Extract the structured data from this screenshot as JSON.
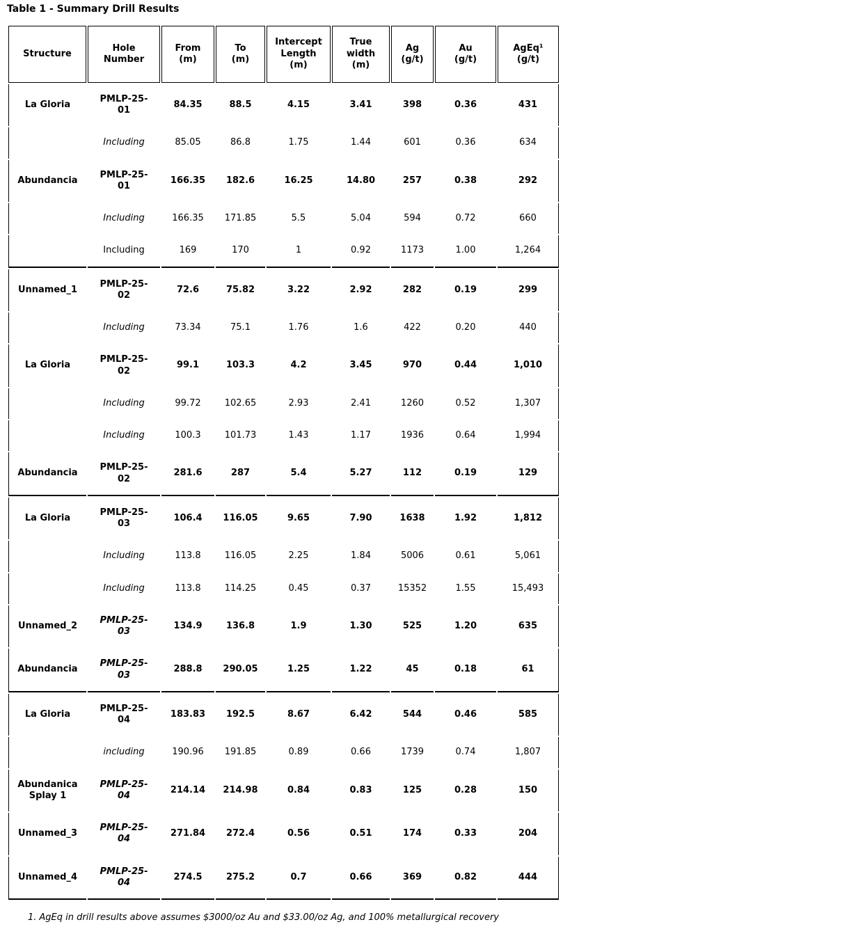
{
  "title": "Table 1 - Summary Drill Results",
  "table": {
    "columns": [
      "Structure",
      "Hole\nNumber",
      "From\n(m)",
      "To\n(m)",
      "Intercept\nLength\n(m)",
      "True\nwidth\n(m)",
      "Ag\n(g/t)",
      "Au\n(g/t)",
      "AgEq¹\n(g/t)"
    ],
    "groups": [
      {
        "rows": [
          {
            "structure": "La Gloria",
            "hole": "PMLP-25-\n01",
            "hole_italic": false,
            "emphasis": "primary",
            "from": "84.35",
            "to": "88.5",
            "intercept_length": "4.15",
            "true_width": "3.41",
            "ag": "398",
            "au": "0.36",
            "ageq": "431"
          },
          {
            "structure": "",
            "hole": "Including",
            "hole_italic": true,
            "emphasis": "including",
            "from": "85.05",
            "to": "86.8",
            "intercept_length": "1.75",
            "true_width": "1.44",
            "ag": "601",
            "au": "0.36",
            "ageq": "634"
          },
          {
            "structure": "Abundancia",
            "hole": "PMLP-25-\n01",
            "hole_italic": false,
            "emphasis": "primary",
            "from": "166.35",
            "to": "182.6",
            "intercept_length": "16.25",
            "true_width": "14.80",
            "ag": "257",
            "au": "0.38",
            "ageq": "292"
          },
          {
            "structure": "",
            "hole": "Including",
            "hole_italic": true,
            "emphasis": "including",
            "from": "166.35",
            "to": "171.85",
            "intercept_length": "5.5",
            "true_width": "5.04",
            "ag": "594",
            "au": "0.72",
            "ageq": "660"
          },
          {
            "structure": "",
            "hole": "Including",
            "hole_italic": false,
            "emphasis": "including",
            "from": "169",
            "to": "170",
            "intercept_length": "1",
            "true_width": "0.92",
            "ag": "1173",
            "au": "1.00",
            "ageq": "1,264"
          }
        ]
      },
      {
        "rows": [
          {
            "structure": "Unnamed_1",
            "hole": "PMLP-25-\n02",
            "hole_italic": false,
            "emphasis": "primary",
            "from": "72.6",
            "to": "75.82",
            "intercept_length": "3.22",
            "true_width": "2.92",
            "ag": "282",
            "au": "0.19",
            "ageq": "299"
          },
          {
            "structure": "",
            "hole": "Including",
            "hole_italic": true,
            "emphasis": "including",
            "from": "73.34",
            "to": "75.1",
            "intercept_length": "1.76",
            "true_width": "1.6",
            "ag": "422",
            "au": "0.20",
            "ageq": "440"
          },
          {
            "structure": "La Gloria",
            "hole": "PMLP-25-\n02",
            "hole_italic": false,
            "emphasis": "primary",
            "from": "99.1",
            "to": "103.3",
            "intercept_length": "4.2",
            "true_width": "3.45",
            "ag": "970",
            "au": "0.44",
            "ageq": "1,010"
          },
          {
            "structure": "",
            "hole": "Including",
            "hole_italic": true,
            "emphasis": "including",
            "from": "99.72",
            "to": "102.65",
            "intercept_length": "2.93",
            "true_width": "2.41",
            "ag": "1260",
            "au": "0.52",
            "ageq": "1,307"
          },
          {
            "structure": "",
            "hole": "Including",
            "hole_italic": true,
            "emphasis": "including",
            "from": "100.3",
            "to": "101.73",
            "intercept_length": "1.43",
            "true_width": "1.17",
            "ag": "1936",
            "au": "0.64",
            "ageq": "1,994"
          },
          {
            "structure": "Abundancia",
            "hole": "PMLP-25-\n02",
            "hole_italic": false,
            "emphasis": "primary",
            "from": "281.6",
            "to": "287",
            "intercept_length": "5.4",
            "true_width": "5.27",
            "ag": "112",
            "au": "0.19",
            "ageq": "129"
          }
        ]
      },
      {
        "rows": [
          {
            "structure": "La Gloria",
            "hole": "PMLP-25-\n03",
            "hole_italic": false,
            "emphasis": "primary",
            "from": "106.4",
            "to": "116.05",
            "intercept_length": "9.65",
            "true_width": "7.90",
            "ag": "1638",
            "au": "1.92",
            "ageq": "1,812"
          },
          {
            "structure": "",
            "hole": "Including",
            "hole_italic": true,
            "emphasis": "including",
            "from": "113.8",
            "to": "116.05",
            "intercept_length": "2.25",
            "true_width": "1.84",
            "ag": "5006",
            "au": "0.61",
            "ageq": "5,061"
          },
          {
            "structure": "",
            "hole": "Including",
            "hole_italic": true,
            "emphasis": "including",
            "from": "113.8",
            "to": "114.25",
            "intercept_length": "0.45",
            "true_width": "0.37",
            "ag": "15352",
            "au": "1.55",
            "ageq": "15,493"
          },
          {
            "structure": "Unnamed_2",
            "hole": "PMLP-25-\n03",
            "hole_italic": true,
            "emphasis": "primary",
            "from": "134.9",
            "to": "136.8",
            "intercept_length": "1.9",
            "true_width": "1.30",
            "ag": "525",
            "au": "1.20",
            "ageq": "635"
          },
          {
            "structure": "Abundancia",
            "hole": "PMLP-25-\n03",
            "hole_italic": true,
            "emphasis": "primary",
            "from": "288.8",
            "to": "290.05",
            "intercept_length": "1.25",
            "true_width": "1.22",
            "ag": "45",
            "au": "0.18",
            "ageq": "61"
          }
        ]
      },
      {
        "rows": [
          {
            "structure": "La Gloria",
            "hole": "PMLP-25-\n04",
            "hole_italic": false,
            "emphasis": "primary",
            "from": "183.83",
            "to": "192.5",
            "intercept_length": "8.67",
            "true_width": "6.42",
            "ag": "544",
            "au": "0.46",
            "ageq": "585"
          },
          {
            "structure": "",
            "hole": "including",
            "hole_italic": true,
            "emphasis": "including",
            "from": "190.96",
            "to": "191.85",
            "intercept_length": "0.89",
            "true_width": "0.66",
            "ag": "1739",
            "au": "0.74",
            "ageq": "1,807"
          },
          {
            "structure": "Abundanica\nSplay 1",
            "hole": "PMLP-25-\n04",
            "hole_italic": true,
            "emphasis": "primary",
            "from": "214.14",
            "to": "214.98",
            "intercept_length": "0.84",
            "true_width": "0.83",
            "ag": "125",
            "au": "0.28",
            "ageq": "150"
          },
          {
            "structure": "Unnamed_3",
            "hole": "PMLP-25-\n04",
            "hole_italic": true,
            "emphasis": "primary",
            "from": "271.84",
            "to": "272.4",
            "intercept_length": "0.56",
            "true_width": "0.51",
            "ag": "174",
            "au": "0.33",
            "ageq": "204"
          },
          {
            "structure": "Unnamed_4",
            "hole": "PMLP-25-\n04",
            "hole_italic": true,
            "emphasis": "primary",
            "from": "274.5",
            "to": "275.2",
            "intercept_length": "0.7",
            "true_width": "0.66",
            "ag": "369",
            "au": "0.82",
            "ageq": "444"
          }
        ]
      }
    ]
  },
  "footnote": {
    "marker": "1.",
    "text": "AgEq in drill results above assumes $3000/oz Au and $33.00/oz Ag, and 100% metallurgical recovery"
  }
}
